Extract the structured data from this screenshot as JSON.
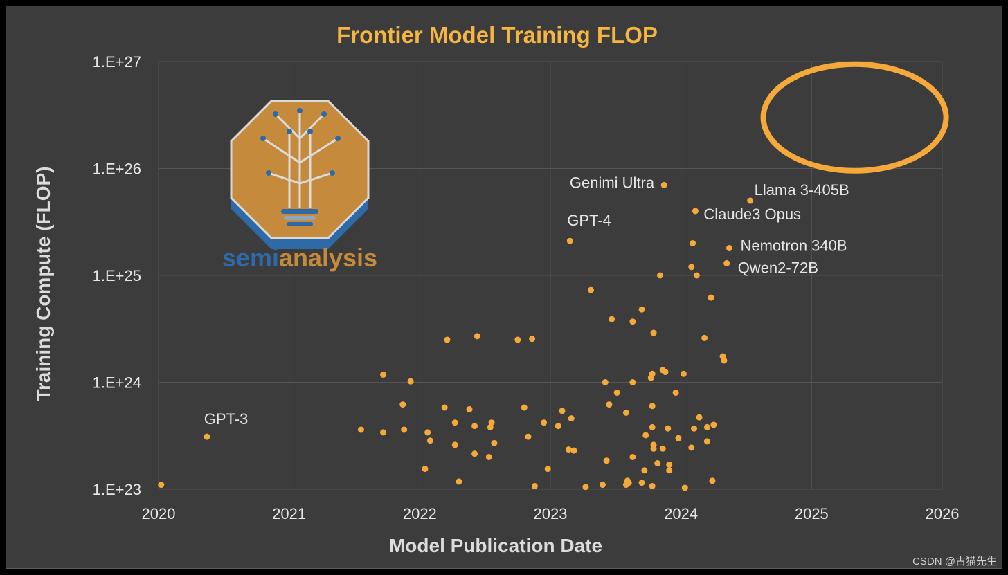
{
  "chart_data": {
    "type": "scatter",
    "title": "Frontier Model Training FLOP",
    "xlabel": "Model Publication Date",
    "ylabel": "Training Compute (FLOP)",
    "x_scale": "date",
    "y_scale": "log",
    "xlim": [
      2020.0,
      2026.0
    ],
    "ylim": [
      1e+23,
      1e+27
    ],
    "x_ticks": [
      "2020",
      "2021",
      "2022",
      "2023",
      "2024",
      "2025",
      "2026"
    ],
    "y_ticks": [
      "1.E+23",
      "1.E+24",
      "1.E+25",
      "1.E+26",
      "1.E+27"
    ],
    "grid": true,
    "marker_color": "#f5a93a",
    "highlight_ellipse": {
      "x_center": 2025.33,
      "y_center": 3e+26,
      "color": "#f5a93a"
    },
    "logo": {
      "name": "semianalysis-logo",
      "text_part1": "semi",
      "text_part2": "analysis"
    },
    "labeled_points": [
      {
        "label": "GPT-3",
        "x": 2020.37,
        "y": 3.1e+23
      },
      {
        "label": "GPT-4",
        "x": 2023.15,
        "y": 2.1e+25
      },
      {
        "label": "Genimi Ultra",
        "x": 2023.87,
        "y": 7e+25
      },
      {
        "label": "Llama 3-405B",
        "x": 2024.53,
        "y": 5e+25
      },
      {
        "label": "Claude3 Opus",
        "x": 2024.11,
        "y": 4e+25
      },
      {
        "label": "Nemotron 340B",
        "x": 2024.37,
        "y": 1.8e+25
      },
      {
        "label": "Qwen2-72B",
        "x": 2024.35,
        "y": 1.3e+25
      }
    ],
    "points": [
      [
        2020.02,
        1.1e+23
      ],
      [
        2021.55,
        3.6e+23
      ],
      [
        2021.72,
        1.18e+24
      ],
      [
        2021.72,
        3.4e+23
      ],
      [
        2021.87,
        6.2e+23
      ],
      [
        2021.88,
        3.6e+23
      ],
      [
        2021.93,
        1.02e+24
      ],
      [
        2022.04,
        1.55e+23
      ],
      [
        2022.06,
        3.4e+23
      ],
      [
        2022.08,
        2.85e+23
      ],
      [
        2022.19,
        5.8e+23
      ],
      [
        2022.21,
        2.5e+24
      ],
      [
        2022.27,
        2.6e+23
      ],
      [
        2022.27,
        4.2e+23
      ],
      [
        2022.3,
        1.18e+23
      ],
      [
        2022.38,
        5.6e+23
      ],
      [
        2022.42,
        2.15e+23
      ],
      [
        2022.42,
        3.9e+23
      ],
      [
        2022.44,
        2.7e+24
      ],
      [
        2022.53,
        2e+23
      ],
      [
        2022.54,
        3.8e+23
      ],
      [
        2022.55,
        4.2e+23
      ],
      [
        2022.57,
        2.7e+23
      ],
      [
        2022.75,
        2.5e+24
      ],
      [
        2022.8,
        5.8e+23
      ],
      [
        2022.83,
        3.1e+23
      ],
      [
        2022.86,
        2.55e+24
      ],
      [
        2022.88,
        1.07e+23
      ],
      [
        2022.95,
        4.2e+23
      ],
      [
        2022.98,
        1.55e+23
      ],
      [
        2023.06,
        3.9e+23
      ],
      [
        2023.09,
        5.4e+23
      ],
      [
        2023.14,
        2.35e+23
      ],
      [
        2023.16,
        4.6e+23
      ],
      [
        2023.18,
        2.3e+23
      ],
      [
        2023.27,
        1.05e+23
      ],
      [
        2023.31,
        7.3e+24
      ],
      [
        2023.4,
        1.1e+23
      ],
      [
        2023.42,
        1e+24
      ],
      [
        2023.43,
        1.85e+23
      ],
      [
        2023.45,
        6.2e+23
      ],
      [
        2023.47,
        3.9e+24
      ],
      [
        2023.51,
        8e+23
      ],
      [
        2023.58,
        1.1e+23
      ],
      [
        2023.58,
        5.2e+23
      ],
      [
        2023.59,
        1.2e+23
      ],
      [
        2023.6,
        1.15e+23
      ],
      [
        2023.63,
        1e+24
      ],
      [
        2023.63,
        2e+23
      ],
      [
        2023.63,
        3.7e+24
      ],
      [
        2023.7,
        4.8e+24
      ],
      [
        2023.7,
        1.15e+23
      ],
      [
        2023.72,
        1.5e+23
      ],
      [
        2023.73,
        3.2e+23
      ],
      [
        2023.77,
        1.1e+24
      ],
      [
        2023.78,
        1.2e+24
      ],
      [
        2023.78,
        1.07e+23
      ],
      [
        2023.78,
        6e+23
      ],
      [
        2023.78,
        3.8e+23
      ],
      [
        2023.79,
        2.4e+23
      ],
      [
        2023.79,
        2.6e+23
      ],
      [
        2023.79,
        2.9e+24
      ],
      [
        2023.82,
        1.75e+23
      ],
      [
        2023.84,
        1e+25
      ],
      [
        2023.86,
        2.4e+23
      ],
      [
        2023.86,
        1.3e+24
      ],
      [
        2023.88,
        1.25e+24
      ],
      [
        2023.9,
        3.7e+23
      ],
      [
        2023.91,
        1.5e+23
      ],
      [
        2023.91,
        1.7e+23
      ],
      [
        2023.96,
        8e+23
      ],
      [
        2023.98,
        3e+23
      ],
      [
        2024.02,
        1.2e+24
      ],
      [
        2024.03,
        1.03e+23
      ],
      [
        2024.08,
        1.2e+25
      ],
      [
        2024.08,
        2.45e+23
      ],
      [
        2024.09,
        2e+25
      ],
      [
        2024.1,
        3.7e+23
      ],
      [
        2024.12,
        1e+25
      ],
      [
        2024.14,
        4.7e+23
      ],
      [
        2024.18,
        2.6e+24
      ],
      [
        2024.2,
        3.8e+23
      ],
      [
        2024.2,
        2.8e+23
      ],
      [
        2024.23,
        6.2e+24
      ],
      [
        2024.24,
        1.2e+23
      ],
      [
        2024.25,
        4e+23
      ],
      [
        2024.32,
        1.75e+24
      ],
      [
        2024.33,
        1.6e+24
      ]
    ]
  },
  "watermark": "CSDN @古猫先生"
}
